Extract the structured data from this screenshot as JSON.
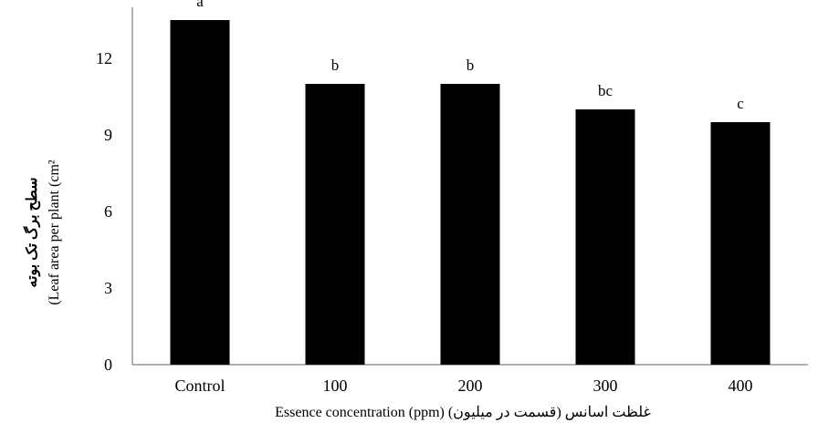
{
  "chart_data": {
    "type": "bar",
    "categories": [
      "Control",
      "100",
      "200",
      "300",
      "400"
    ],
    "values": [
      13.5,
      11.0,
      11.0,
      10.0,
      9.5
    ],
    "significance_letters": [
      "a",
      "b",
      "b",
      "bc",
      "c"
    ],
    "ylim": [
      0,
      14
    ],
    "yticks": [
      0,
      3,
      6,
      9,
      12
    ],
    "xlabel": "Essence concentration (ppm) غلظت اسانس (قسمت در میلیون)",
    "ylabel_fa": "سطح برگ تک بوته",
    "ylabel_en": "(Leaf area per plant (cm²",
    "bar_color": "#000000",
    "grid": false
  }
}
